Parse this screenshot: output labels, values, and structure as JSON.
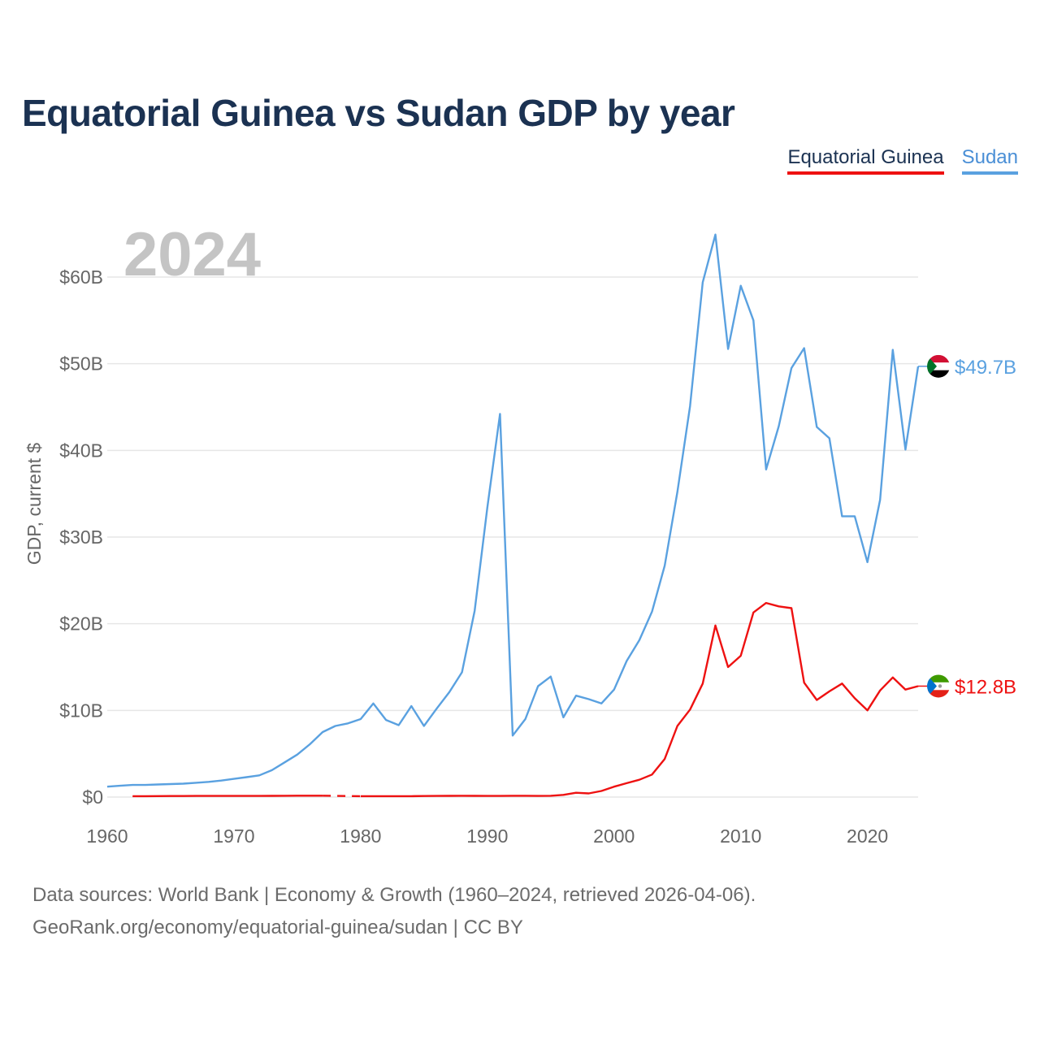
{
  "title": "Equatorial Guinea vs Sudan GDP by year",
  "year_label": "2024",
  "legend": [
    {
      "name": "Equatorial Guinea",
      "color": "#ee1111"
    },
    {
      "name": "Sudan",
      "color": "#5aa1e0"
    }
  ],
  "source_line1": "Data sources: World Bank | Economy & Growth (1960–2024, retrieved 2026-04-06).",
  "source_line2": "GeoRank.org/economy/equatorial-guinea/sudan | CC BY",
  "chart_data": {
    "type": "line",
    "title": "Equatorial Guinea vs Sudan GDP by year",
    "xlabel": "",
    "ylabel": "GDP, current $",
    "xlim": [
      1960,
      2024
    ],
    "ylim": [
      0,
      60
    ],
    "x_ticks": [
      1960,
      1970,
      1980,
      1990,
      2000,
      2010,
      2020
    ],
    "x_tick_labels": [
      "1960",
      "1970",
      "1980",
      "1990",
      "2000",
      "2010",
      "2020"
    ],
    "y_ticks": [
      0,
      10,
      20,
      30,
      40,
      50,
      60
    ],
    "y_tick_labels": [
      "$0",
      "$10B",
      "$20B",
      "$30B",
      "$40B",
      "$50B",
      "$60B"
    ],
    "grid": true,
    "series": [
      {
        "name": "Sudan",
        "color": "#5aa1e0",
        "end_label": "$49.7B",
        "x": [
          1960,
          1961,
          1962,
          1963,
          1964,
          1965,
          1966,
          1967,
          1968,
          1969,
          1970,
          1971,
          1972,
          1973,
          1974,
          1975,
          1976,
          1977,
          1978,
          1979,
          1980,
          1981,
          1982,
          1983,
          1984,
          1985,
          1986,
          1987,
          1988,
          1989,
          1990,
          1991,
          1992,
          1993,
          1994,
          1995,
          1996,
          1997,
          1998,
          1999,
          2000,
          2001,
          2002,
          2003,
          2004,
          2005,
          2006,
          2007,
          2008,
          2009,
          2010,
          2011,
          2012,
          2013,
          2014,
          2015,
          2016,
          2017,
          2018,
          2019,
          2020,
          2021,
          2022,
          2023,
          2024
        ],
        "values": [
          1.2,
          1.3,
          1.4,
          1.4,
          1.45,
          1.5,
          1.55,
          1.65,
          1.75,
          1.9,
          2.1,
          2.3,
          2.5,
          3.1,
          4.0,
          4.9,
          6.1,
          7.5,
          8.2,
          8.5,
          9.0,
          10.8,
          8.9,
          8.3,
          10.5,
          8.2,
          10.2,
          12.1,
          14.4,
          21.5,
          33.4,
          44.2,
          7.1,
          9.0,
          12.8,
          13.9,
          9.2,
          11.7,
          11.3,
          10.8,
          12.4,
          15.7,
          18.1,
          21.4,
          26.7,
          35.2,
          45.1,
          59.4,
          64.9,
          51.7,
          59.0,
          55.0,
          37.8,
          42.8,
          49.5,
          51.8,
          42.7,
          41.4,
          32.4,
          32.4,
          27.1,
          34.3,
          51.6,
          40.1,
          49.7
        ]
      },
      {
        "name": "Equatorial Guinea",
        "color": "#ee1111",
        "end_label": "$12.8B",
        "segments": [
          {
            "x": [
              1962,
              1963,
              1964,
              1965,
              1966,
              1967,
              1968,
              1969,
              1970,
              1971,
              1972,
              1973,
              1974,
              1975,
              1976,
              1977
            ],
            "values": [
              0.1,
              0.1,
              0.11,
              0.12,
              0.12,
              0.13,
              0.13,
              0.13,
              0.13,
              0.13,
              0.13,
              0.14,
              0.15,
              0.16,
              0.16,
              0.16
            ]
          },
          {
            "x": [
              1980,
              1981,
              1982,
              1983,
              1984,
              1985,
              1986,
              1987,
              1988,
              1989,
              1990,
              1991,
              1992,
              1993,
              1994,
              1995,
              1996,
              1997,
              1998,
              1999,
              2000,
              2001,
              2002,
              2003,
              2004,
              2005,
              2006,
              2007,
              2008,
              2009,
              2010,
              2011,
              2012,
              2013,
              2014,
              2015,
              2016,
              2017,
              2018,
              2019,
              2020,
              2021,
              2022,
              2023,
              2024
            ],
            "values": [
              0.1,
              0.1,
              0.1,
              0.1,
              0.1,
              0.12,
              0.13,
              0.14,
              0.15,
              0.14,
              0.13,
              0.13,
              0.15,
              0.15,
              0.13,
              0.15,
              0.25,
              0.5,
              0.42,
              0.7,
              1.2,
              1.6,
              2.0,
              2.6,
              4.4,
              8.2,
              10.1,
              13.1,
              19.8,
              15.0,
              16.3,
              21.3,
              22.4,
              22.0,
              21.8,
              13.2,
              11.2,
              12.2,
              13.1,
              11.4,
              10.0,
              12.3,
              13.8,
              12.4,
              12.8
            ]
          }
        ],
        "gap": {
          "x": [
            1977,
            1980
          ]
        }
      }
    ]
  }
}
